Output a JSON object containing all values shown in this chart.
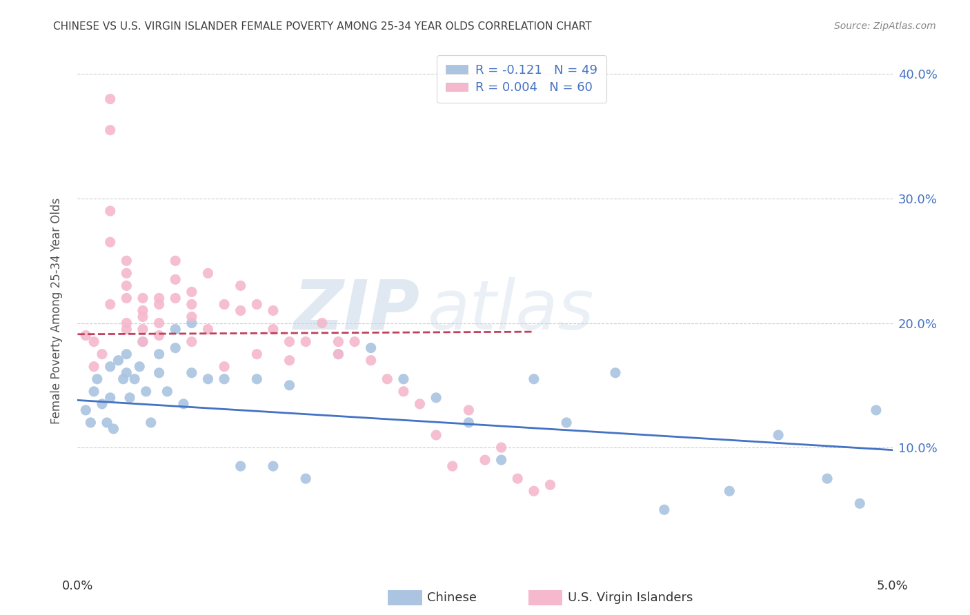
{
  "title": "CHINESE VS U.S. VIRGIN ISLANDER FEMALE POVERTY AMONG 25-34 YEAR OLDS CORRELATION CHART",
  "source": "Source: ZipAtlas.com",
  "ylabel": "Female Poverty Among 25-34 Year Olds",
  "xlim": [
    0.0,
    0.05
  ],
  "ylim": [
    0.0,
    0.42
  ],
  "yticks": [
    0.1,
    0.2,
    0.3,
    0.4
  ],
  "ytick_labels": [
    "10.0%",
    "20.0%",
    "30.0%",
    "40.0%"
  ],
  "xticks": [
    0.0,
    0.05
  ],
  "xtick_labels": [
    "0.0%",
    "5.0%"
  ],
  "legend_r_chinese": "-0.121",
  "legend_n_chinese": "49",
  "legend_r_virgin": "0.004",
  "legend_n_virgin": "60",
  "chinese_color": "#aac4e2",
  "virgin_color": "#f5b8cc",
  "chinese_line_color": "#4472c4",
  "virgin_line_color": "#c0405a",
  "watermark_zip": "ZIP",
  "watermark_atlas": "atlas",
  "title_color": "#404040",
  "source_color": "#888888",
  "axis_label_color": "#4472c4",
  "chinese_x": [
    0.0005,
    0.0008,
    0.001,
    0.0012,
    0.0015,
    0.0018,
    0.002,
    0.002,
    0.0022,
    0.0025,
    0.0028,
    0.003,
    0.003,
    0.0032,
    0.0035,
    0.0038,
    0.004,
    0.0042,
    0.0045,
    0.005,
    0.005,
    0.0055,
    0.006,
    0.006,
    0.0065,
    0.007,
    0.007,
    0.008,
    0.009,
    0.01,
    0.011,
    0.012,
    0.013,
    0.014,
    0.016,
    0.018,
    0.02,
    0.022,
    0.024,
    0.026,
    0.028,
    0.03,
    0.033,
    0.036,
    0.04,
    0.043,
    0.046,
    0.048,
    0.049
  ],
  "chinese_y": [
    0.13,
    0.12,
    0.145,
    0.155,
    0.135,
    0.12,
    0.165,
    0.14,
    0.115,
    0.17,
    0.155,
    0.175,
    0.16,
    0.14,
    0.155,
    0.165,
    0.185,
    0.145,
    0.12,
    0.175,
    0.16,
    0.145,
    0.195,
    0.18,
    0.135,
    0.2,
    0.16,
    0.155,
    0.155,
    0.085,
    0.155,
    0.085,
    0.15,
    0.075,
    0.175,
    0.18,
    0.155,
    0.14,
    0.12,
    0.09,
    0.155,
    0.12,
    0.16,
    0.05,
    0.065,
    0.11,
    0.075,
    0.055,
    0.13
  ],
  "virgin_x": [
    0.0005,
    0.001,
    0.001,
    0.0015,
    0.002,
    0.002,
    0.002,
    0.002,
    0.002,
    0.003,
    0.003,
    0.003,
    0.003,
    0.003,
    0.003,
    0.004,
    0.004,
    0.004,
    0.004,
    0.004,
    0.005,
    0.005,
    0.005,
    0.005,
    0.006,
    0.006,
    0.006,
    0.007,
    0.007,
    0.007,
    0.007,
    0.008,
    0.008,
    0.009,
    0.009,
    0.01,
    0.01,
    0.011,
    0.011,
    0.012,
    0.012,
    0.013,
    0.013,
    0.014,
    0.015,
    0.016,
    0.016,
    0.017,
    0.018,
    0.019,
    0.02,
    0.021,
    0.022,
    0.023,
    0.024,
    0.025,
    0.026,
    0.027,
    0.028,
    0.029
  ],
  "virgin_y": [
    0.19,
    0.185,
    0.165,
    0.175,
    0.38,
    0.355,
    0.29,
    0.265,
    0.215,
    0.25,
    0.24,
    0.23,
    0.22,
    0.2,
    0.195,
    0.22,
    0.21,
    0.205,
    0.195,
    0.185,
    0.22,
    0.215,
    0.2,
    0.19,
    0.25,
    0.235,
    0.22,
    0.225,
    0.215,
    0.205,
    0.185,
    0.24,
    0.195,
    0.215,
    0.165,
    0.23,
    0.21,
    0.215,
    0.175,
    0.21,
    0.195,
    0.185,
    0.17,
    0.185,
    0.2,
    0.185,
    0.175,
    0.185,
    0.17,
    0.155,
    0.145,
    0.135,
    0.11,
    0.085,
    0.13,
    0.09,
    0.1,
    0.075,
    0.065,
    0.07
  ],
  "chinese_trendline": [
    0.0,
    0.138,
    0.05,
    0.098
  ],
  "virgin_trendline": [
    0.0,
    0.191,
    0.028,
    0.193
  ]
}
